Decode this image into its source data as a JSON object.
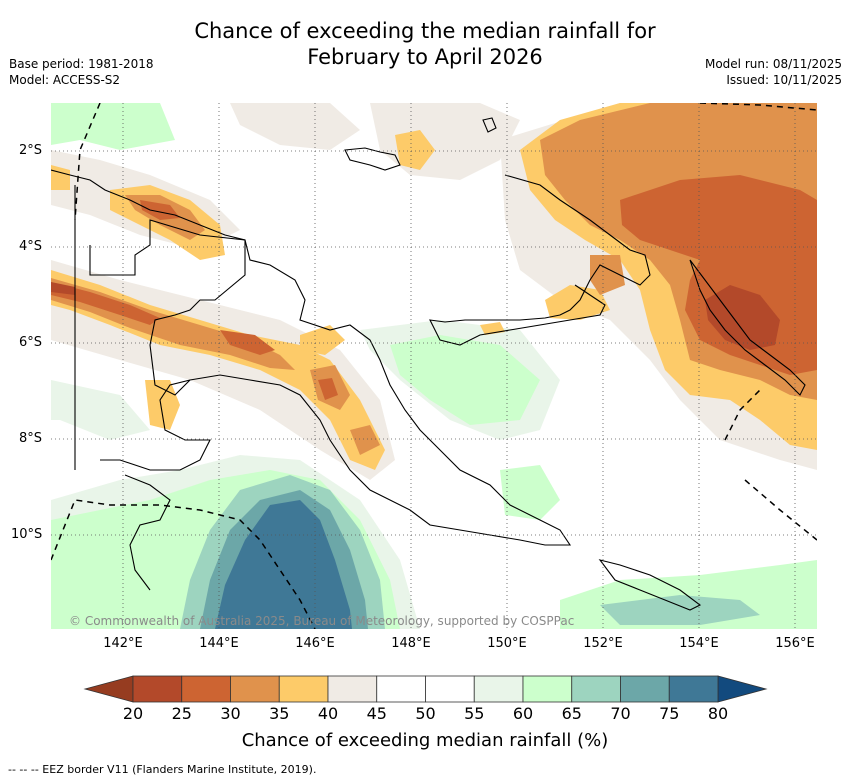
{
  "title": {
    "line1": "Chance of exceeding the median rainfall for",
    "line2": "February to April 2026"
  },
  "meta_left": {
    "base_period": "Base period: 1981-2018",
    "model": "Model: ACCESS-S2"
  },
  "meta_right": {
    "model_run": "Model run: 08/11/2025",
    "issued": "Issued: 10/11/2025"
  },
  "map": {
    "latitude_labels": [
      "2°S",
      "4°S",
      "6°S",
      "8°S",
      "10°S"
    ],
    "longitude_labels": [
      "142°E",
      "144°E",
      "146°E",
      "148°E",
      "150°E",
      "152°E",
      "154°E",
      "156°E"
    ],
    "copyright": "© Commonwealth of Australia 2025, Bureau of Meteorology, supported by COSPPac"
  },
  "colorbar": {
    "ticks": [
      "20",
      "25",
      "30",
      "35",
      "40",
      "45",
      "50",
      "55",
      "60",
      "65",
      "70",
      "75",
      "80"
    ],
    "colors": [
      "#b3492a",
      "#cd6432",
      "#e0924c",
      "#fdcb69",
      "#f0ebe5",
      "#ffffff",
      "#ffffff",
      "#e9f5e9",
      "#ccffcc",
      "#9dd4bf",
      "#6ca7a8",
      "#3f7896"
    ],
    "under_color": "#963c20",
    "over_color": "#124a7e",
    "label": "Chance of exceeding median rainfall (%)"
  },
  "footer": {
    "text": "--  --  -- EEZ border V11 (Flanders Marine Institute, 2019)."
  }
}
